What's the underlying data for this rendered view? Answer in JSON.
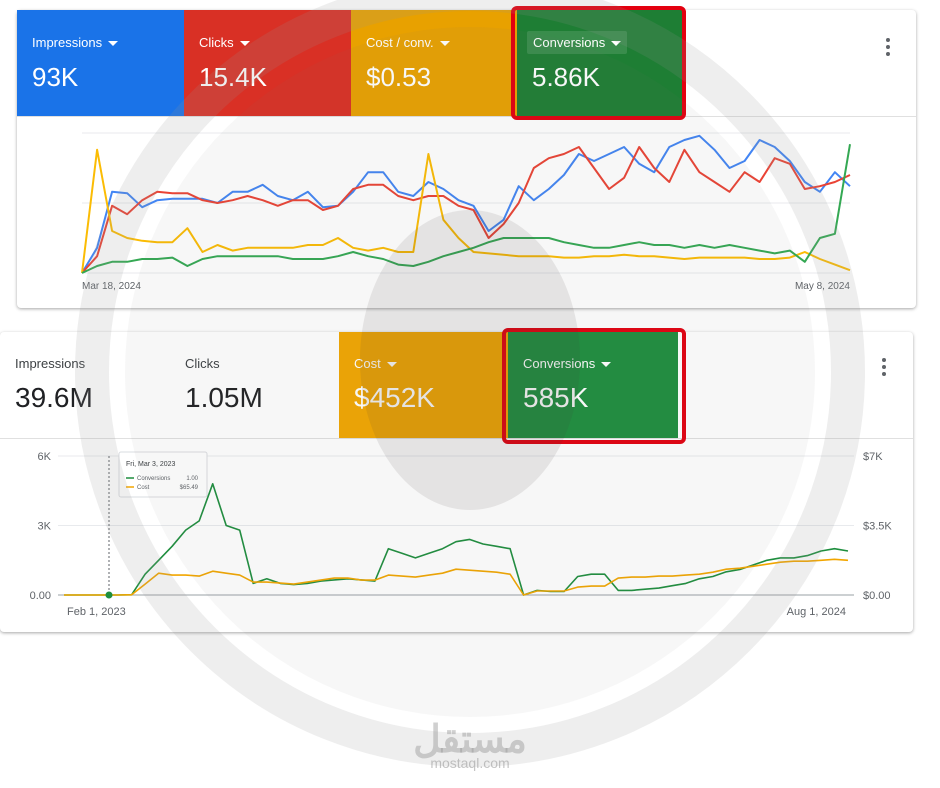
{
  "top_panel": {
    "tiles": [
      {
        "label": "Impressions",
        "value": "93K",
        "color": "#1a73e8"
      },
      {
        "label": "Clicks",
        "value": "15.4K",
        "color": "#d93025"
      },
      {
        "label": "Cost / conv.",
        "value": "$0.53",
        "color": "#e8a100"
      },
      {
        "label": "Conversions",
        "value": "5.86K",
        "color": "#1e8e3e"
      }
    ],
    "x_start_label": "Mar 18, 2024",
    "x_end_label": "May 8, 2024"
  },
  "bottom_panel": {
    "tiles": [
      {
        "label": "Impressions",
        "value": "39.6M"
      },
      {
        "label": "Clicks",
        "value": "1.05M"
      },
      {
        "label": "Cost",
        "value": "$452K",
        "color": "#f2a600"
      },
      {
        "label": "Conversions",
        "value": "585K",
        "color": "#1e8e3e"
      }
    ],
    "tooltip": {
      "date": "Fri, Mar 3, 2023",
      "rows": [
        {
          "name": "Conversions",
          "value": "1.00",
          "color": "#1e8e3e"
        },
        {
          "name": "Cost",
          "value": "$65.49",
          "color": "#f2a600"
        }
      ]
    },
    "x_start_label": "Feb 1, 2023",
    "x_end_label": "Aug 1, 2024"
  },
  "watermark": {
    "arabic": "مستقل",
    "latin": "mostaql.com"
  },
  "chart_data": [
    {
      "type": "line",
      "xlabel": "",
      "ylabel": "",
      "x_labels": [
        "Mar 18, 2024",
        "May 8, 2024"
      ],
      "x": [
        1,
        2,
        3,
        4,
        5,
        6,
        7,
        8,
        9,
        10,
        11,
        12,
        13,
        14,
        15,
        16,
        17,
        18,
        19,
        20,
        21,
        22,
        23,
        24,
        25,
        26,
        27,
        28,
        29,
        30,
        31,
        32,
        33,
        34,
        35,
        36,
        37,
        38,
        39,
        40,
        41,
        42,
        43,
        44,
        45,
        46,
        47,
        48,
        49,
        50,
        51,
        52
      ],
      "ylim": [
        0,
        100
      ],
      "grid": true,
      "series": [
        {
          "name": "Impressions",
          "color": "#4285f4",
          "values": [
            0,
            18,
            58,
            57,
            47,
            52,
            53,
            53,
            53,
            50,
            58,
            58,
            63,
            55,
            52,
            58,
            47,
            48,
            58,
            72,
            72,
            58,
            55,
            65,
            60,
            52,
            48,
            30,
            38,
            62,
            52,
            60,
            70,
            85,
            80,
            85,
            90,
            78,
            72,
            90,
            95,
            98,
            88,
            75,
            80,
            95,
            90,
            80,
            65,
            58,
            72,
            62
          ]
        },
        {
          "name": "Clicks",
          "color": "#ea4335",
          "values": [
            0,
            12,
            48,
            42,
            52,
            58,
            57,
            57,
            52,
            50,
            52,
            55,
            52,
            48,
            52,
            52,
            45,
            48,
            60,
            63,
            63,
            55,
            52,
            55,
            55,
            48,
            45,
            25,
            35,
            50,
            75,
            82,
            85,
            90,
            75,
            60,
            68,
            90,
            75,
            65,
            88,
            72,
            65,
            58,
            72,
            65,
            82,
            78,
            60,
            62,
            65,
            70
          ]
        },
        {
          "name": "Cost / conv.",
          "color": "#fbbc04",
          "values": [
            0,
            88,
            30,
            25,
            23,
            22,
            22,
            32,
            15,
            20,
            16,
            18,
            18,
            18,
            18,
            20,
            20,
            25,
            18,
            16,
            18,
            15,
            15,
            85,
            38,
            25,
            15,
            14,
            13,
            12,
            12,
            12,
            11,
            11,
            12,
            12,
            13,
            12,
            12,
            11,
            10,
            11,
            11,
            11,
            11,
            10,
            10,
            11,
            15,
            10,
            6,
            2
          ]
        },
        {
          "name": "Conversions",
          "color": "#34a853",
          "values": [
            0,
            5,
            8,
            8,
            10,
            10,
            11,
            5,
            10,
            12,
            12,
            12,
            12,
            12,
            10,
            10,
            10,
            12,
            15,
            12,
            10,
            6,
            5,
            8,
            12,
            15,
            18,
            22,
            25,
            25,
            25,
            25,
            22,
            20,
            18,
            18,
            20,
            22,
            20,
            20,
            18,
            20,
            18,
            20,
            18,
            16,
            14,
            16,
            8,
            25,
            28,
            92
          ]
        }
      ]
    },
    {
      "type": "line",
      "x_labels": [
        "Feb 1, 2023",
        "Aug 1, 2024"
      ],
      "y_left": {
        "ticks": [
          "0.00",
          "3K",
          "6K"
        ],
        "ylim": [
          0,
          6000
        ]
      },
      "y_right": {
        "ticks": [
          "$0.00",
          "$3.5K",
          "$7K"
        ],
        "ylim": [
          0,
          7000
        ]
      },
      "grid": true,
      "x": [
        0,
        10,
        20,
        30,
        40,
        50,
        60,
        70,
        80,
        90,
        100,
        110,
        120,
        130,
        140,
        150,
        160,
        170,
        180,
        190,
        200,
        210,
        220,
        230,
        240,
        250,
        260,
        270,
        280,
        290,
        300,
        310,
        320,
        330,
        340,
        350,
        360,
        370,
        380,
        390,
        400,
        410,
        420,
        430,
        440,
        450,
        460,
        470,
        480,
        490,
        500,
        510,
        520,
        530,
        540,
        550,
        560,
        570,
        580
      ],
      "series": [
        {
          "name": "Conversions",
          "color": "#1e8e3e",
          "axis": "left",
          "values": [
            0,
            0,
            0,
            0,
            0,
            10,
            900,
            1500,
            2100,
            2800,
            3200,
            4800,
            3000,
            2800,
            500,
            700,
            500,
            450,
            500,
            600,
            650,
            700,
            650,
            600,
            2000,
            1800,
            1600,
            1800,
            2000,
            2300,
            2400,
            2200,
            2100,
            2000,
            0,
            200,
            150,
            150,
            800,
            900,
            900,
            200,
            200,
            250,
            300,
            400,
            500,
            700,
            800,
            1000,
            1100,
            1300,
            1500,
            1600,
            1600,
            1700,
            1900,
            2000,
            1900
          ]
        },
        {
          "name": "Cost",
          "color": "#f2a600",
          "axis": "right",
          "values": [
            0,
            0,
            0,
            0,
            0,
            10,
            550,
            1100,
            1000,
            1000,
            950,
            1200,
            1100,
            1000,
            650,
            650,
            600,
            550,
            650,
            750,
            850,
            850,
            750,
            750,
            1000,
            950,
            900,
            1000,
            1100,
            1300,
            1250,
            1200,
            1150,
            1050,
            0,
            200,
            200,
            200,
            400,
            450,
            450,
            850,
            900,
            900,
            950,
            950,
            1000,
            1050,
            1150,
            1300,
            1350,
            1450,
            1550,
            1650,
            1700,
            1700,
            1750,
            1800,
            1750
          ]
        }
      ]
    }
  ]
}
